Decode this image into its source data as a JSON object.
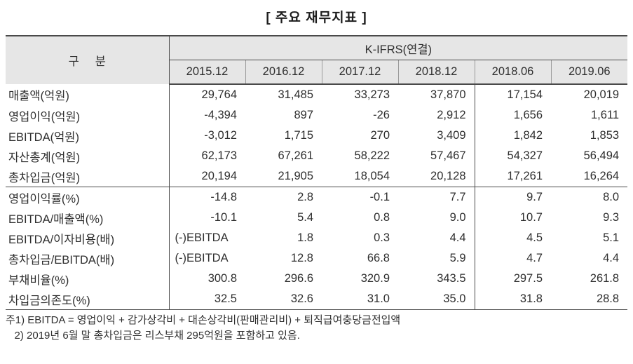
{
  "title": "[ 주요 재무지표 ]",
  "table": {
    "corner_header": "구     분",
    "group_header": "K-IFRS(연결)",
    "columns": [
      "2015.12",
      "2016.12",
      "2017.12",
      "2018.12",
      "2018.06",
      "2019.06"
    ],
    "separator_before_column": 4,
    "rows": [
      {
        "label": "매출액(억원)",
        "values": [
          "29,764",
          "31,485",
          "33,273",
          "37,870",
          "17,154",
          "20,019"
        ],
        "group_end": false
      },
      {
        "label": "영업이익(억원)",
        "values": [
          "-4,394",
          "897",
          "-26",
          "2,912",
          "1,656",
          "1,611"
        ],
        "group_end": false
      },
      {
        "label": "EBITDA(억원)",
        "values": [
          "-3,012",
          "1,715",
          "270",
          "3,409",
          "1,842",
          "1,853"
        ],
        "group_end": false
      },
      {
        "label": "자산총계(억원)",
        "values": [
          "62,173",
          "67,261",
          "58,222",
          "57,467",
          "54,327",
          "56,494"
        ],
        "group_end": false
      },
      {
        "label": "총차입금(억원)",
        "values": [
          "20,194",
          "21,905",
          "18,054",
          "20,128",
          "17,261",
          "16,264"
        ],
        "group_end": true
      },
      {
        "label": "영업이익률(%)",
        "values": [
          "-14.8",
          "2.8",
          "-0.1",
          "7.7",
          "9.7",
          "8.0"
        ],
        "group_end": false
      },
      {
        "label": "EBITDA/매출액(%)",
        "values": [
          "-10.1",
          "5.4",
          "0.8",
          "9.0",
          "10.7",
          "9.3"
        ],
        "group_end": false
      },
      {
        "label": "EBITDA/이자비용(배)",
        "values": [
          "(-)EBITDA",
          "1.8",
          "0.3",
          "4.4",
          "4.5",
          "5.1"
        ],
        "group_end": false
      },
      {
        "label": "총차입금/EBITDA(배)",
        "values": [
          "(-)EBITDA",
          "12.8",
          "66.8",
          "5.9",
          "4.7",
          "4.4"
        ],
        "group_end": false
      },
      {
        "label": "부채비율(%)",
        "values": [
          "300.8",
          "296.6",
          "320.9",
          "343.5",
          "297.5",
          "261.8"
        ],
        "group_end": false
      },
      {
        "label": "차입금의존도(%)",
        "values": [
          "32.5",
          "32.6",
          "31.0",
          "35.0",
          "31.8",
          "28.8"
        ],
        "group_end": false
      }
    ]
  },
  "footnotes": [
    "주1) EBITDA = 영업이익 + 감가상각비 + 대손상각비(판매관리비) + 퇴직급여충당금전입액",
    "   2) 2019년 6월 말 총차입금은 리스부채 295억원을 포함하고 있음."
  ],
  "colors": {
    "header_background": "#e6e6e6",
    "border_dark": "#4a4a4a",
    "text": "#2f2f2f"
  }
}
